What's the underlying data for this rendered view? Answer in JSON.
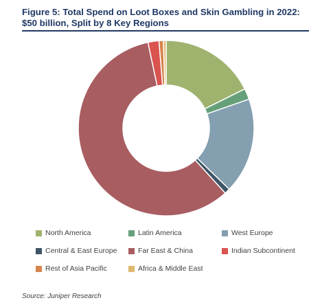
{
  "title": "Figure 5: Total Spend on Loot Boxes and Skin Gambling in 2022: $50 billion, Split by 8 Key Regions",
  "source": "Source: Juniper Research",
  "chart_data": {
    "type": "pie",
    "donut": true,
    "title": "Figure 5: Total Spend on Loot Boxes and Skin Gambling in 2022: $50 billion, Split by 8 Key Regions",
    "legend_position": "bottom",
    "categories": [
      "North America",
      "Latin America",
      "West Europe",
      "Central & East Europe",
      "Far East & China",
      "Indian Subcontinent",
      "Rest of Asia Pacific",
      "Africa & Middle East"
    ],
    "values": [
      17.5,
      2.0,
      17.5,
      1.0,
      58.0,
      2.0,
      0.8,
      0.5
    ],
    "unit": "%",
    "colors": [
      "#9fb36f",
      "#66a07a",
      "#839fb0",
      "#3d5566",
      "#a85d61",
      "#d9534f",
      "#d6844c",
      "#e0b870"
    ]
  }
}
